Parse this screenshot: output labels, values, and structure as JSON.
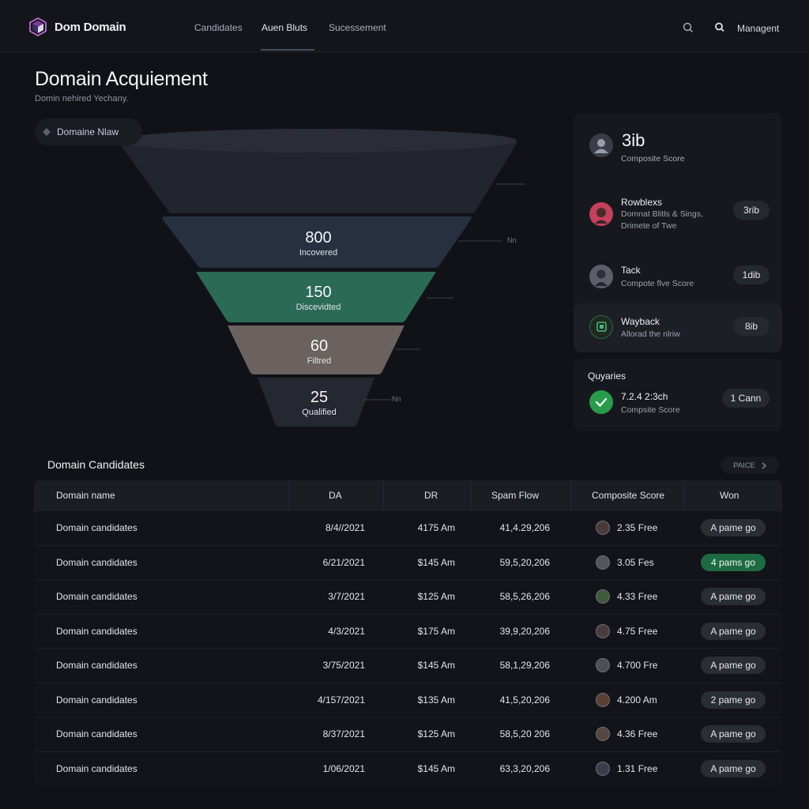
{
  "app": {
    "brand": "Dom Domain",
    "nav_tabs": [
      {
        "label": "Candidates"
      },
      {
        "label": "Auen Bluts"
      },
      {
        "label": "Sucessement"
      }
    ],
    "active_tab": "Auen Bluts",
    "management_label": "Managent"
  },
  "header": {
    "title": "Domain Acquiement",
    "subtitle": "Domin nehired Yechany."
  },
  "funnel": {
    "chip_label": "Domaine Nlaw",
    "stages": [
      {
        "value": "",
        "label": ""
      },
      {
        "value": "800",
        "label": "Incovered"
      },
      {
        "value": "150",
        "label": "Discevidted"
      },
      {
        "value": "60",
        "label": "Filtred"
      },
      {
        "value": "25",
        "label": "Qualified"
      }
    ],
    "side_labels": [
      "Nn",
      "Nn"
    ],
    "colors": {
      "stage1": "#242631",
      "stage2": "#26303d",
      "stage3": "#2c6a56",
      "stage4": "#6a625f",
      "stage5": "#262931"
    }
  },
  "score_panel": {
    "top": {
      "value": "3ib",
      "label": "Composite Score"
    },
    "items": [
      {
        "title": "Rowblexs",
        "sub1": "Domnat Blitls & Sings,",
        "sub2": "Drimete of Twe",
        "pill": "3rib"
      },
      {
        "title": "Tack",
        "sub1": "Compote flve Score",
        "sub2": "",
        "pill": "1dib"
      },
      {
        "title": "Wayback",
        "sub1": "Allorad the nlriw",
        "sub2": "",
        "pill": "8ib"
      }
    ],
    "queries": {
      "heading": "Quyaries",
      "title": "7.2.4 2:3ch",
      "sub": "Compsite Score",
      "pill": "1 Cann"
    }
  },
  "table": {
    "title": "Domain Candidates",
    "more_label": "PAICE",
    "columns": [
      "Domain name",
      "DA",
      "DR",
      "Spam Flow",
      "Composite Score",
      "Won"
    ],
    "rows": [
      {
        "name": "Domain candidates",
        "da": "8/4//2021",
        "dr": "4175 Am",
        "spam": "41,4.29,206",
        "score": "2.35 Free",
        "won": "A pame go",
        "won_green": false
      },
      {
        "name": "Domain candidates",
        "da": "6/21/2021",
        "dr": "$145 Am",
        "spam": "59,5,20,206",
        "score": "3.05 Fes",
        "won": "4 pams go",
        "won_green": true
      },
      {
        "name": "Domain candidates",
        "da": "3/7/2021",
        "dr": "$125 Am",
        "spam": "58,5,26,206",
        "score": "4.33 Free",
        "won": "A pame go",
        "won_green": false
      },
      {
        "name": "Domain candidates",
        "da": "4/3/2021",
        "dr": "$175 Am",
        "spam": "39,9,20,206",
        "score": "4.75 Free",
        "won": "A pame go",
        "won_green": false
      },
      {
        "name": "Domain candidates",
        "da": "3/75/2021",
        "dr": "$145 Am",
        "spam": "58,1,29,206",
        "score": "4.700 Fre",
        "won": "A pame go",
        "won_green": false
      },
      {
        "name": "Domain candidates",
        "da": "4/157/2021",
        "dr": "$135 Am",
        "spam": "41,5,20,206",
        "score": "4.200 Am",
        "won": "2 pame go",
        "won_green": false
      },
      {
        "name": "Domain candidates",
        "da": "8/37/2021",
        "dr": "$125 Am",
        "spam": "58,5,20 206",
        "score": "4.36 Free",
        "won": "A pame go",
        "won_green": false
      },
      {
        "name": "Domain candidates",
        "da": "1/06/2021",
        "dr": "$145 Am",
        "spam": "63,3,20,206",
        "score": "1.31 Free",
        "won": "A pame go",
        "won_green": false
      }
    ]
  },
  "icons": {
    "brand": "cube-logo-icon",
    "search": "search-icon",
    "user_search": "magnifier-icon",
    "chip": "diamond-icon",
    "more": "chevron-right-icon"
  }
}
